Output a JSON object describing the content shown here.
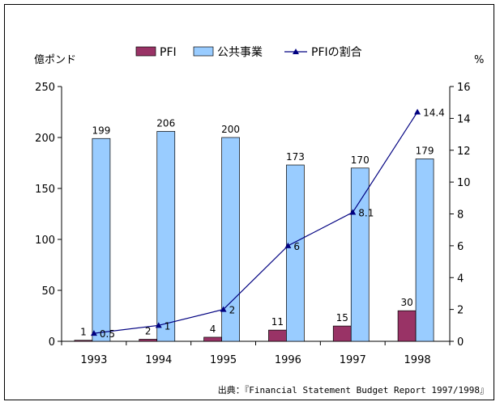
{
  "chart_data": {
    "type": "bar",
    "categories": [
      "1993",
      "1994",
      "1995",
      "1996",
      "1997",
      "1998"
    ],
    "series": [
      {
        "name": "PFI",
        "kind": "bar",
        "axis": "left",
        "color": "#993366",
        "values": [
          1,
          2,
          4,
          11,
          15,
          30
        ],
        "labels": [
          "1",
          "2",
          "4",
          "11",
          "15",
          "30"
        ]
      },
      {
        "name": "公共事業",
        "kind": "bar",
        "axis": "left",
        "color": "#99ccff",
        "values": [
          199,
          206,
          200,
          173,
          170,
          179
        ],
        "labels": [
          "199",
          "206",
          "200",
          "173",
          "170",
          "179"
        ]
      },
      {
        "name": "PFIの割合",
        "kind": "line",
        "axis": "right",
        "color": "#000080",
        "marker": "triangle",
        "values": [
          0.5,
          1,
          2,
          6,
          8.1,
          14.4
        ],
        "labels": [
          "0.5",
          "1",
          "2",
          "6",
          "8.1",
          "14.4"
        ]
      }
    ],
    "y_left": {
      "label": "億ポンド",
      "lim": [
        0,
        250
      ],
      "ticks": [
        "0",
        "50",
        "100",
        "150",
        "200",
        "250"
      ]
    },
    "y_right": {
      "label": "%",
      "lim": [
        0,
        16
      ],
      "ticks": [
        "0",
        "2",
        "4",
        "6",
        "8",
        "10",
        "12",
        "14",
        "16"
      ]
    },
    "grid": false,
    "legend": "top",
    "source": "出典：『Financial Statement Budget Report 1997/1998』"
  }
}
